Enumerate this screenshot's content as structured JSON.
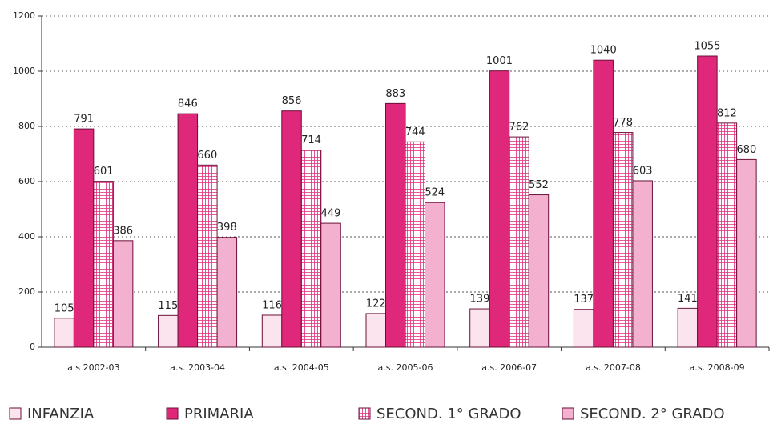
{
  "chart_data": {
    "type": "bar",
    "categories": [
      "a.s 2002-03",
      "a.s. 2003-04",
      "a.s. 2004-05",
      "a.s. 2005-06",
      "a.s. 2006-07",
      "a.s. 2007-08",
      "a.s. 2008-09"
    ],
    "series": [
      {
        "name": "INFANZIA",
        "color": "#fbe4ee",
        "values": [
          105,
          115,
          116,
          122,
          139,
          137,
          141
        ]
      },
      {
        "name": "PRIMARIA",
        "color": "#e0287a",
        "values": [
          791,
          846,
          856,
          883,
          1001,
          1040,
          1055
        ]
      },
      {
        "name": "SECOND. 1° GRADO",
        "color": "#ee7fb0",
        "pattern": "grid",
        "values": [
          601,
          660,
          714,
          744,
          762,
          778,
          812
        ]
      },
      {
        "name": "SECOND. 2° GRADO",
        "color": "#f4b1cf",
        "values": [
          386,
          398,
          449,
          524,
          552,
          603,
          680
        ]
      }
    ],
    "ylim": [
      0,
      1200
    ],
    "yticks": [
      0,
      200,
      400,
      600,
      800,
      1000,
      1200
    ],
    "grid": true,
    "legend": "bottom"
  }
}
